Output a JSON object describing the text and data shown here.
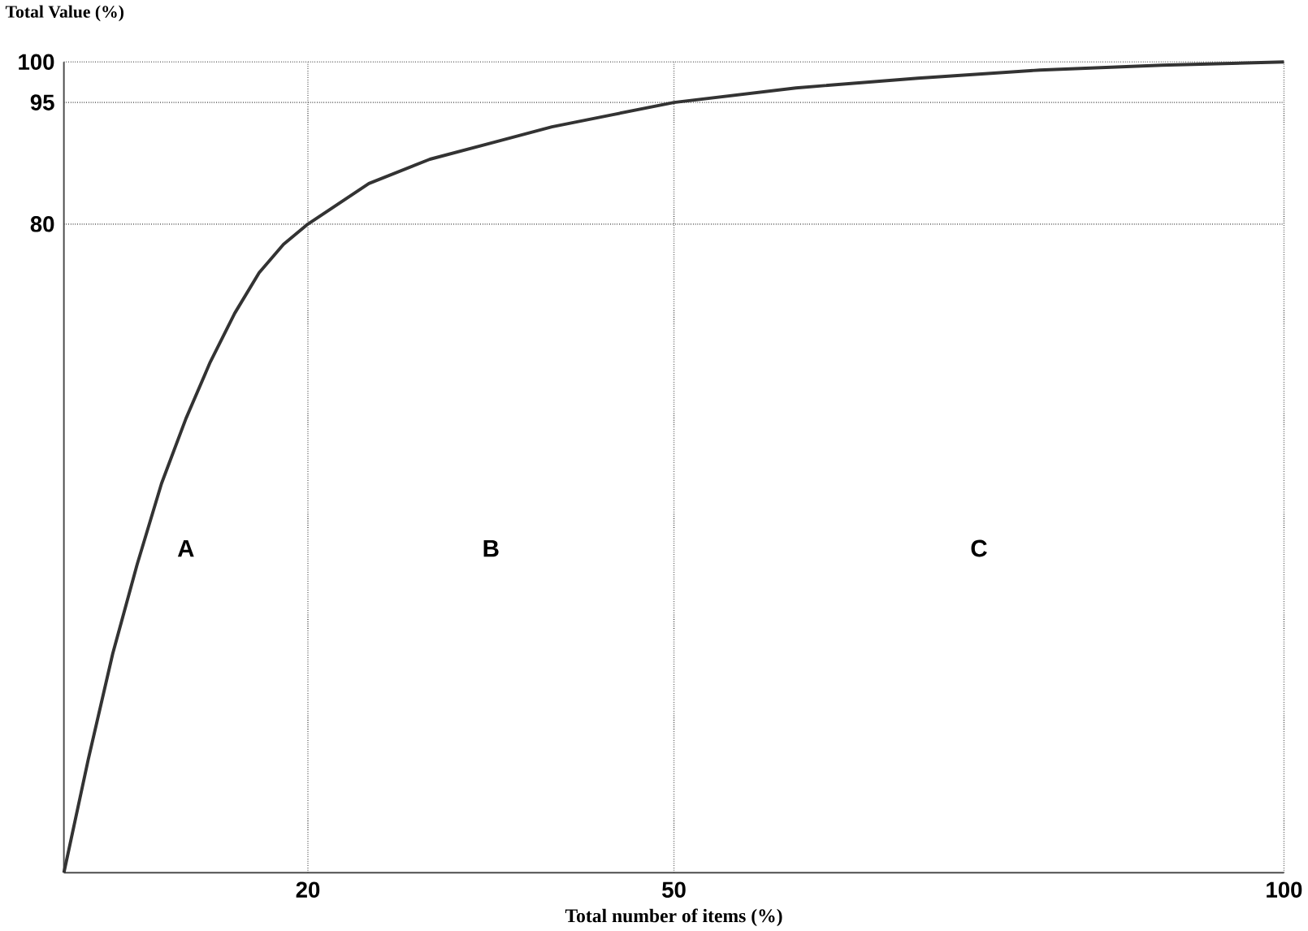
{
  "chart_data": {
    "type": "line",
    "xlabel": "Total number of items (%)",
    "ylabel": "Total Value (%)",
    "x": [
      0,
      2,
      4,
      6,
      8,
      10,
      12,
      14,
      16,
      18,
      20,
      25,
      30,
      35,
      40,
      45,
      50,
      60,
      70,
      80,
      90,
      100
    ],
    "series": [
      {
        "color": "#333333",
        "values": [
          0,
          14,
          27,
          38,
          48,
          56,
          63,
          69,
          74,
          77.5,
          80,
          85,
          88,
          90,
          92,
          93.5,
          95,
          96.8,
          98,
          99,
          99.6,
          100
        ]
      }
    ],
    "xlim": [
      0,
      100
    ],
    "ylim": [
      0,
      100
    ],
    "xticks": [
      20,
      50,
      100
    ],
    "yticks": [
      80,
      95,
      100
    ],
    "annotations": [
      "A",
      "B",
      "C"
    ],
    "grid": true,
    "line_style": "solid",
    "marker": "none"
  }
}
